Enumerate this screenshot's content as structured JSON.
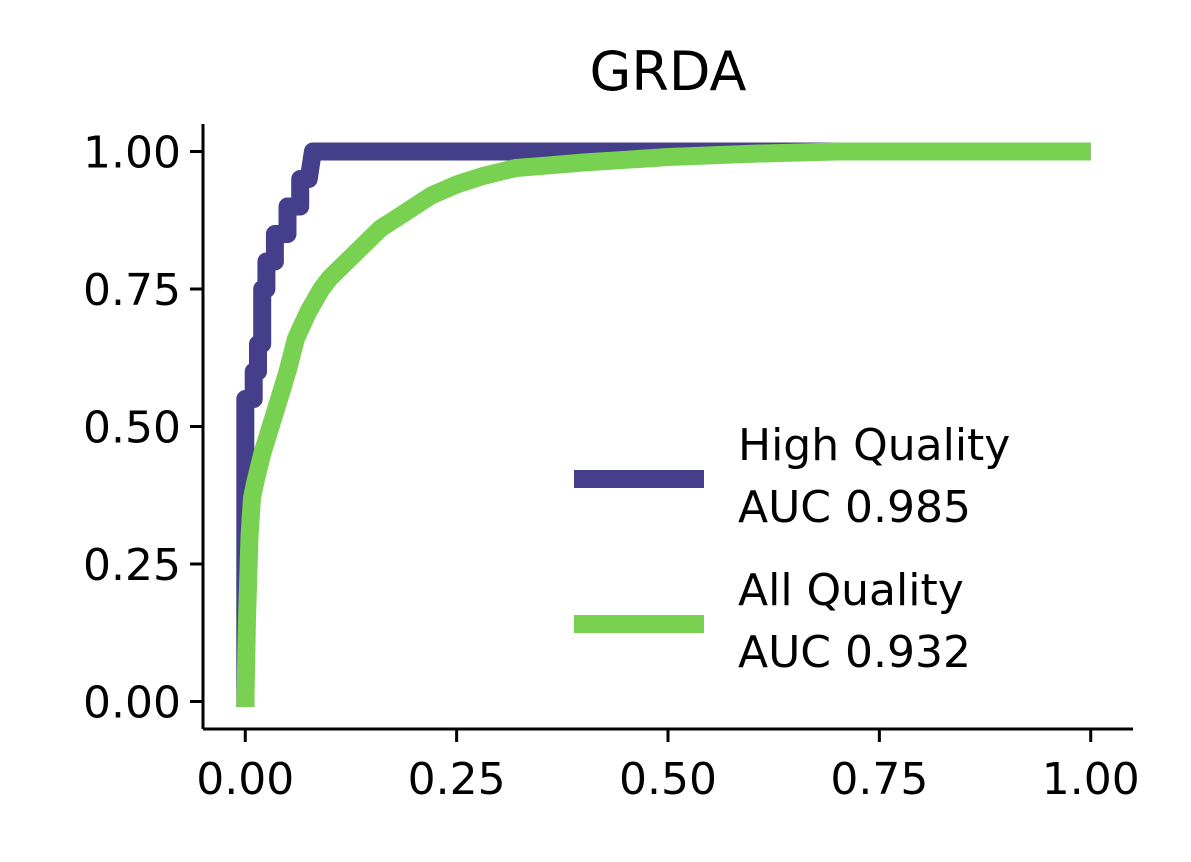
{
  "chart_data": {
    "type": "line",
    "title": "GRDA",
    "xlabel": "",
    "ylabel": "",
    "xlim": [
      -0.05,
      1.05
    ],
    "ylim": [
      -0.05,
      1.05
    ],
    "xticks": [
      0.0,
      0.25,
      0.5,
      0.75,
      1.0
    ],
    "xtick_labels": [
      "0.00",
      "0.25",
      "0.50",
      "0.75",
      "1.00"
    ],
    "yticks": [
      0.0,
      0.25,
      0.5,
      0.75,
      1.0
    ],
    "ytick_labels": [
      "0.00",
      "0.25",
      "0.50",
      "0.75",
      "1.00"
    ],
    "grid": false,
    "legend_position": "lower-right",
    "series": [
      {
        "name": "High Quality\nAUC 0.985",
        "label_lines": [
          "High Quality",
          "AUC 0.985"
        ],
        "color": "#453f8b",
        "points": [
          [
            0.0,
            -0.01
          ],
          [
            0.0,
            0.55
          ],
          [
            0.01,
            0.55
          ],
          [
            0.01,
            0.6
          ],
          [
            0.015,
            0.6
          ],
          [
            0.015,
            0.65
          ],
          [
            0.02,
            0.65
          ],
          [
            0.02,
            0.7
          ],
          [
            0.02,
            0.75
          ],
          [
            0.025,
            0.75
          ],
          [
            0.025,
            0.8
          ],
          [
            0.035,
            0.8
          ],
          [
            0.035,
            0.85
          ],
          [
            0.05,
            0.85
          ],
          [
            0.05,
            0.9
          ],
          [
            0.065,
            0.9
          ],
          [
            0.065,
            0.95
          ],
          [
            0.075,
            0.95
          ],
          [
            0.08,
            1.0
          ],
          [
            1.0,
            1.0
          ]
        ]
      },
      {
        "name": "All Quality\nAUC 0.932",
        "label_lines": [
          "All Quality",
          "AUC 0.932"
        ],
        "color": "#78d151",
        "points": [
          [
            0.0,
            -0.01
          ],
          [
            0.002,
            0.15
          ],
          [
            0.005,
            0.3
          ],
          [
            0.008,
            0.37
          ],
          [
            0.012,
            0.4
          ],
          [
            0.02,
            0.45
          ],
          [
            0.03,
            0.5
          ],
          [
            0.04,
            0.55
          ],
          [
            0.05,
            0.6
          ],
          [
            0.06,
            0.66
          ],
          [
            0.075,
            0.71
          ],
          [
            0.09,
            0.75
          ],
          [
            0.1,
            0.77
          ],
          [
            0.12,
            0.8
          ],
          [
            0.14,
            0.83
          ],
          [
            0.16,
            0.86
          ],
          [
            0.18,
            0.88
          ],
          [
            0.2,
            0.9
          ],
          [
            0.22,
            0.92
          ],
          [
            0.25,
            0.94
          ],
          [
            0.28,
            0.955
          ],
          [
            0.32,
            0.97
          ],
          [
            0.36,
            0.975
          ],
          [
            0.4,
            0.98
          ],
          [
            0.45,
            0.985
          ],
          [
            0.5,
            0.99
          ],
          [
            0.55,
            0.993
          ],
          [
            0.6,
            0.996
          ],
          [
            0.65,
            0.998
          ],
          [
            0.7,
            1.0
          ],
          [
            1.0,
            1.0
          ]
        ]
      }
    ]
  }
}
